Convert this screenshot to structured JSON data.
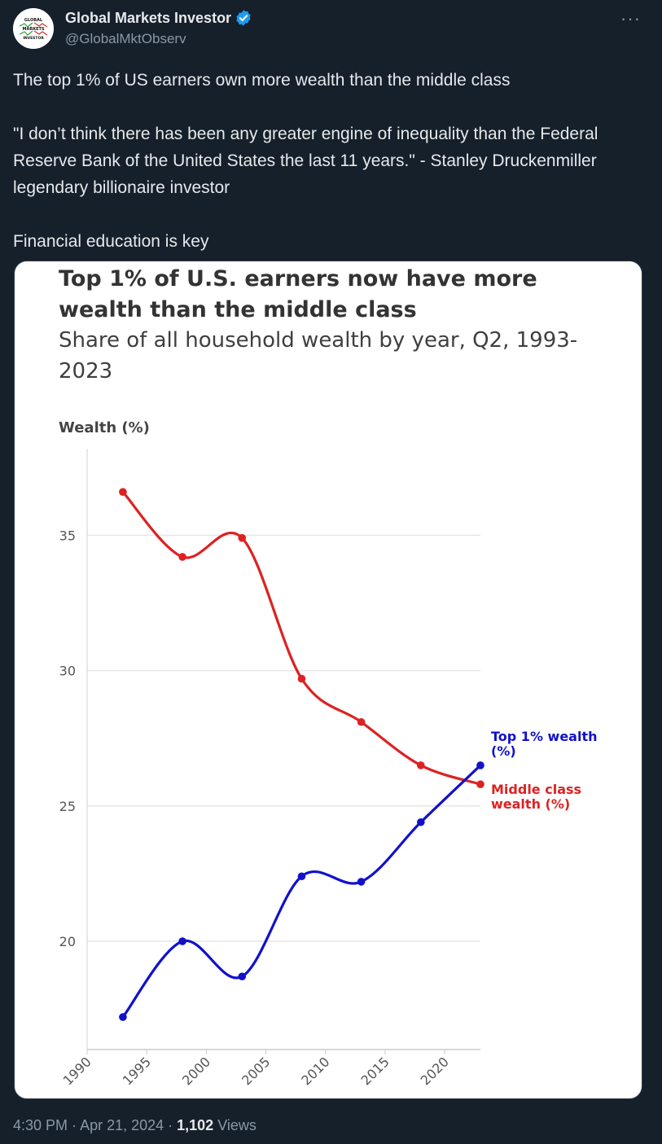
{
  "author": {
    "display_name": "Global Markets Investor",
    "handle": "@GlobalMktObserv",
    "avatar_text": [
      "GLOBAL",
      "MARKETS",
      "INVESTOR"
    ]
  },
  "tweet": {
    "paragraphs": [
      "The top 1% of US earners own more wealth than the middle class",
      "\"I don’t think there has been any greater engine of inequality than the Federal Reserve Bank of the United States the last 11 years.\" - Stanley Druckenmiller legendary billionaire investor",
      "Financial education is key"
    ]
  },
  "footer": {
    "time": "4:30 PM",
    "sep1": " · ",
    "date": "Apr 21, 2024",
    "sep2": " · ",
    "views_count": "1,102",
    "views_label": " Views"
  },
  "chart_data": {
    "type": "line",
    "title": "Top 1% of U.S. earners now have more wealth than the middle class",
    "subtitle": "Share of all household wealth by year, Q2, 1993-2023",
    "ylabel": "Wealth (%)",
    "xlim": [
      1990,
      2023
    ],
    "ylim": [
      16.0,
      38.2
    ],
    "x_ticks": [
      1990,
      1995,
      2000,
      2005,
      2010,
      2015,
      2020
    ],
    "y_ticks": [
      20,
      25,
      30,
      35
    ],
    "grid": true,
    "series": [
      {
        "name": "Middle class wealth (%)",
        "label_lines": [
          "Middle class",
          "wealth (%)"
        ],
        "color": "#dd2222",
        "x": [
          1993,
          1998,
          2003,
          2008,
          2013,
          2018,
          2023
        ],
        "values": [
          36.6,
          34.2,
          34.9,
          29.7,
          28.1,
          26.5,
          25.8
        ]
      },
      {
        "name": "Top 1% wealth (%)",
        "label_lines": [
          "Top 1% wealth",
          "(%)"
        ],
        "color": "#1111cc",
        "x": [
          1993,
          1998,
          2003,
          2008,
          2013,
          2018,
          2023
        ],
        "values": [
          17.2,
          20.0,
          18.7,
          22.4,
          22.2,
          24.4,
          26.5
        ]
      }
    ]
  }
}
